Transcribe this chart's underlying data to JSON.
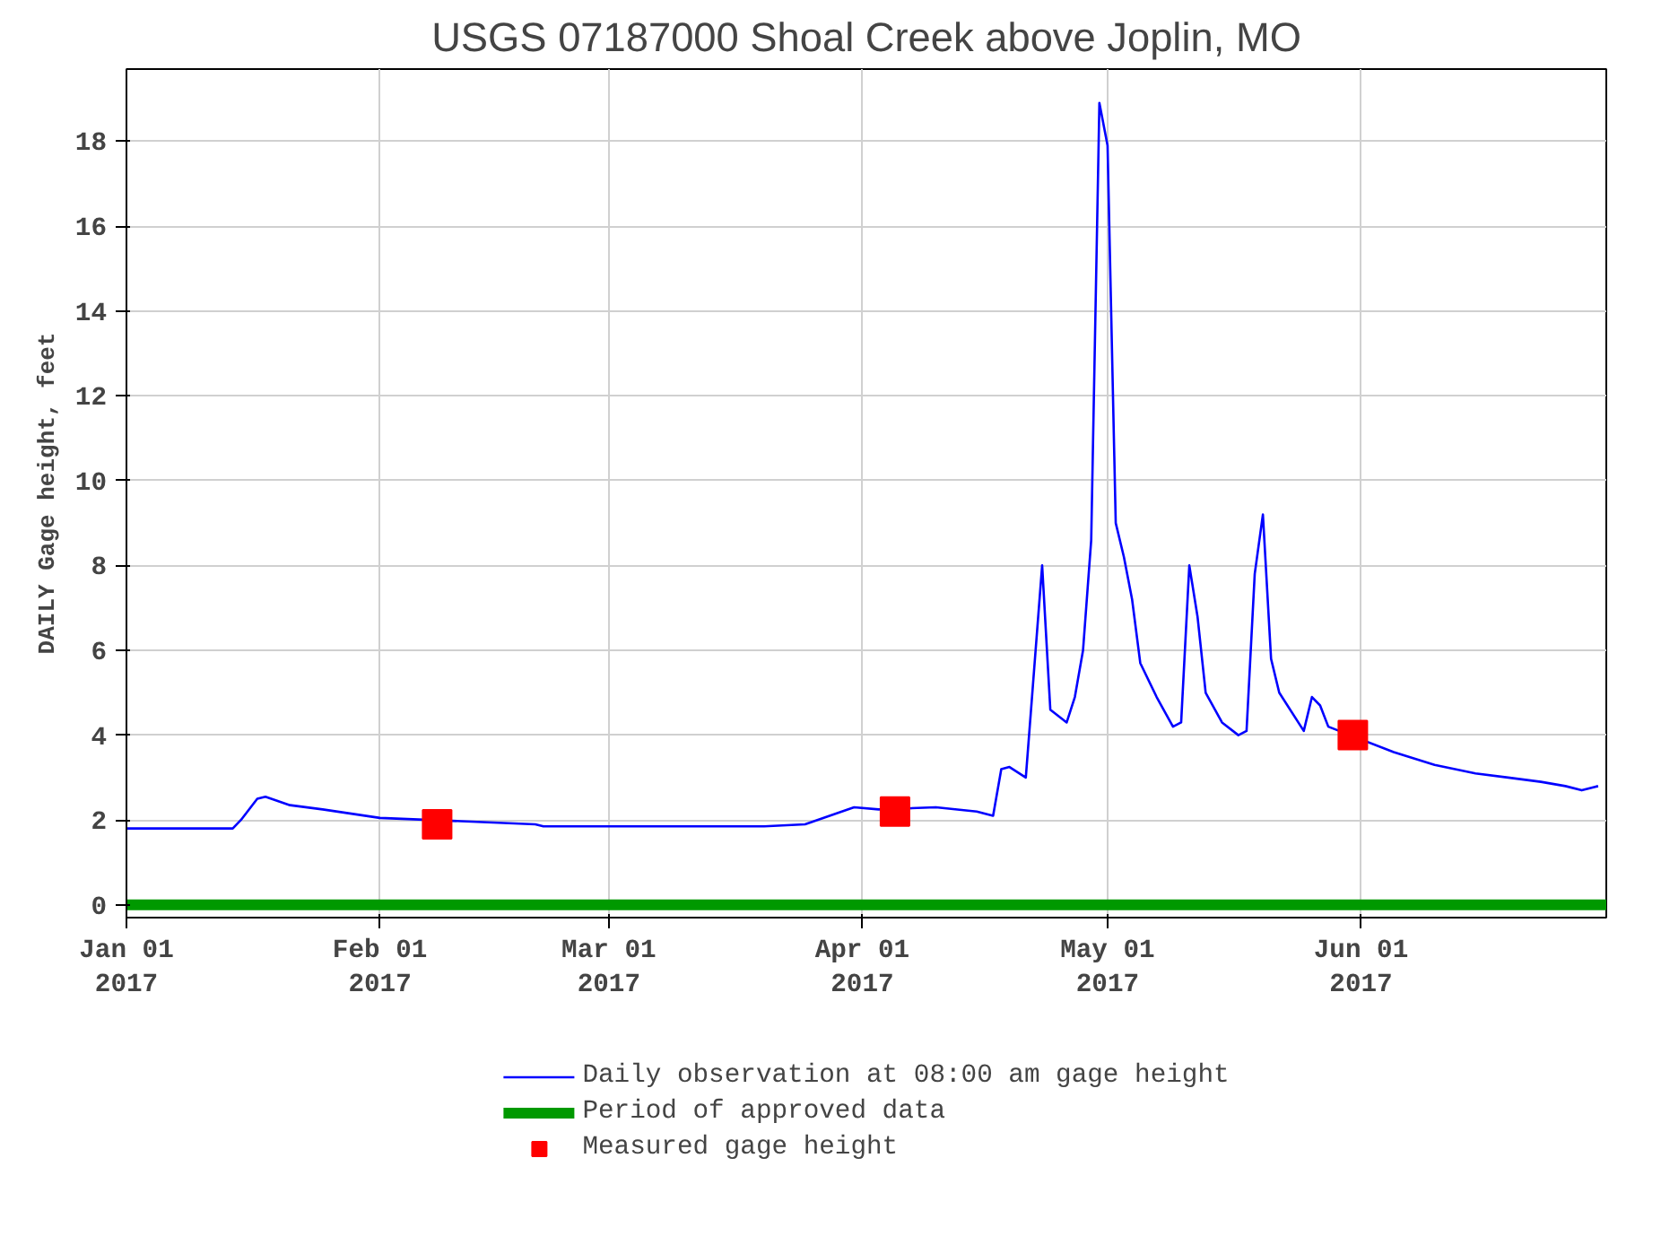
{
  "chart_data": {
    "type": "line",
    "title": "USGS 07187000 Shoal Creek above Joplin, MO",
    "ylabel": "DAILY Gage height, feet",
    "xlim": [
      "2017-01-01",
      "2017-07-01"
    ],
    "ylim": [
      -0.3,
      19.7
    ],
    "xticks": [
      {
        "value": "2017-01-01",
        "label": "Jan 01\n2017"
      },
      {
        "value": "2017-02-01",
        "label": "Feb 01\n2017"
      },
      {
        "value": "2017-03-01",
        "label": "Mar 01\n2017"
      },
      {
        "value": "2017-04-01",
        "label": "Apr 01\n2017"
      },
      {
        "value": "2017-05-01",
        "label": "May 01\n2017"
      },
      {
        "value": "2017-06-01",
        "label": "Jun 01\n2017"
      }
    ],
    "yticks": [
      0,
      2,
      4,
      6,
      8,
      10,
      12,
      14,
      16,
      18
    ],
    "grid": true,
    "legend": "bottom",
    "series": [
      {
        "name": "Daily observation at 08:00 am gage height",
        "color": "#0000ff",
        "type": "line",
        "line_style": "solid",
        "marker": "none",
        "x": [
          "2017-01-01",
          "2017-01-14",
          "2017-01-15",
          "2017-01-17",
          "2017-01-18",
          "2017-01-21",
          "2017-01-25",
          "2017-02-01",
          "2017-02-20",
          "2017-02-21",
          "2017-03-20",
          "2017-03-25",
          "2017-03-28",
          "2017-03-31",
          "2017-04-03",
          "2017-04-10",
          "2017-04-15",
          "2017-04-17",
          "2017-04-18",
          "2017-04-19",
          "2017-04-21",
          "2017-04-22",
          "2017-04-23",
          "2017-04-24",
          "2017-04-26",
          "2017-04-27",
          "2017-04-28",
          "2017-04-29",
          "2017-04-30",
          "2017-05-01",
          "2017-05-02",
          "2017-05-03",
          "2017-05-04",
          "2017-05-05",
          "2017-05-07",
          "2017-05-09",
          "2017-05-10",
          "2017-05-11",
          "2017-05-12",
          "2017-05-13",
          "2017-05-15",
          "2017-05-17",
          "2017-05-18",
          "2017-05-19",
          "2017-05-20",
          "2017-05-21",
          "2017-05-22",
          "2017-05-25",
          "2017-05-26",
          "2017-05-27",
          "2017-05-28",
          "2017-06-05",
          "2017-06-10",
          "2017-06-15",
          "2017-06-19",
          "2017-06-23",
          "2017-06-26",
          "2017-06-28",
          "2017-06-30"
        ],
        "values": [
          1.8,
          1.8,
          2.0,
          2.5,
          2.55,
          2.35,
          2.25,
          2.05,
          1.9,
          1.85,
          1.85,
          1.9,
          2.1,
          2.3,
          2.25,
          2.3,
          2.2,
          2.1,
          3.2,
          3.25,
          3.0,
          5.5,
          8.0,
          4.6,
          4.3,
          4.9,
          6.0,
          8.6,
          18.9,
          17.9,
          9.0,
          8.2,
          7.2,
          5.7,
          4.9,
          4.2,
          4.3,
          8.0,
          6.8,
          5.0,
          4.3,
          4.0,
          4.1,
          7.8,
          9.2,
          5.8,
          5.0,
          4.1,
          4.9,
          4.7,
          4.2,
          3.6,
          3.3,
          3.1,
          3.0,
          2.9,
          2.8,
          2.7,
          2.8
        ]
      },
      {
        "name": "Period of approved data",
        "color": "#009900",
        "type": "line",
        "line_style": "solid",
        "marker": "none",
        "x": [
          "2017-01-01",
          "2017-07-01"
        ],
        "values": [
          0,
          0
        ]
      },
      {
        "name": "Measured gage height",
        "color": "#ff0000",
        "type": "scatter",
        "marker": "square",
        "x": [
          "2017-02-08",
          "2017-04-05",
          "2017-05-31"
        ],
        "values": [
          1.9,
          2.2,
          4.0
        ]
      }
    ]
  }
}
